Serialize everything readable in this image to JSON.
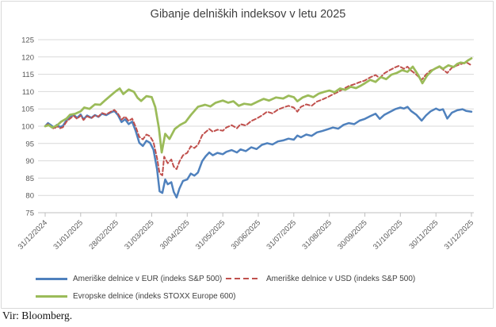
{
  "chart": {
    "title": "Gibanje delniških indeksov v letu 2025",
    "source_note": "Vir: Bloomberg."
  },
  "colors": {
    "us_eur_blue": "#4F81BD",
    "us_usd_red": "#C0504D",
    "europe_green": "#9BBB59",
    "gridline": "#d9d9d9",
    "axis_line": "#bfbfbf",
    "axis_text": "#595959"
  },
  "chart_data": {
    "type": "line",
    "title": "Gibanje delniških indeksov v letu 2025",
    "xlabel": "",
    "ylabel": "",
    "ylim": [
      75,
      125
    ],
    "y_ticks": [
      75,
      80,
      85,
      90,
      95,
      100,
      105,
      110,
      115,
      120,
      125
    ],
    "x_labels": [
      "31/12/2024",
      "31/01/2025",
      "28/02/2025",
      "31/03/2025",
      "30/04/2025",
      "31/05/2025",
      "30/06/2025",
      "31/07/2025",
      "31/08/2025",
      "30/09/2025",
      "31/10/2025",
      "30/11/2025",
      "31/12/2025"
    ],
    "x_unit": "months_from_2024-12-31",
    "grid": true,
    "legend_position": "bottom",
    "series": [
      {
        "id": "sp500-eur",
        "name": "Ameriške delnice v EUR (indeks S&P 500)",
        "color": "#4F81BD",
        "dash": null,
        "width": 2.5,
        "points": [
          [
            0,
            100
          ],
          [
            0.08,
            100.9
          ],
          [
            0.15,
            100.4
          ],
          [
            0.25,
            99.6
          ],
          [
            0.33,
            100.4
          ],
          [
            0.42,
            99.8
          ],
          [
            0.5,
            100.1
          ],
          [
            0.6,
            101.7
          ],
          [
            0.7,
            102.6
          ],
          [
            0.8,
            103.3
          ],
          [
            0.9,
            102.4
          ],
          [
            1.0,
            103.4
          ],
          [
            1.08,
            102.0
          ],
          [
            1.18,
            103.1
          ],
          [
            1.3,
            102.4
          ],
          [
            1.4,
            103.2
          ],
          [
            1.5,
            102.7
          ],
          [
            1.6,
            103.6
          ],
          [
            1.72,
            103.2
          ],
          [
            1.85,
            104.0
          ],
          [
            1.95,
            104.4
          ],
          [
            2.05,
            103.2
          ],
          [
            2.15,
            101.2
          ],
          [
            2.25,
            102.0
          ],
          [
            2.35,
            100.6
          ],
          [
            2.45,
            101.3
          ],
          [
            2.55,
            98.6
          ],
          [
            2.65,
            95.2
          ],
          [
            2.75,
            94.3
          ],
          [
            2.85,
            95.8
          ],
          [
            2.95,
            95.2
          ],
          [
            3.05,
            93.2
          ],
          [
            3.15,
            87.6
          ],
          [
            3.22,
            81.2
          ],
          [
            3.3,
            80.7
          ],
          [
            3.38,
            84.6
          ],
          [
            3.45,
            83.2
          ],
          [
            3.55,
            83.8
          ],
          [
            3.62,
            81.0
          ],
          [
            3.7,
            79.4
          ],
          [
            3.78,
            82.0
          ],
          [
            3.88,
            84.2
          ],
          [
            4.0,
            84.6
          ],
          [
            4.1,
            86.3
          ],
          [
            4.2,
            85.7
          ],
          [
            4.3,
            86.6
          ],
          [
            4.42,
            89.9
          ],
          [
            4.52,
            91.3
          ],
          [
            4.62,
            92.4
          ],
          [
            4.72,
            91.6
          ],
          [
            4.85,
            92.3
          ],
          [
            5.0,
            91.9
          ],
          [
            5.1,
            92.6
          ],
          [
            5.25,
            93.1
          ],
          [
            5.4,
            92.4
          ],
          [
            5.5,
            93.3
          ],
          [
            5.65,
            92.8
          ],
          [
            5.8,
            93.9
          ],
          [
            5.95,
            93.4
          ],
          [
            6.1,
            94.6
          ],
          [
            6.25,
            95.1
          ],
          [
            6.4,
            94.7
          ],
          [
            6.55,
            95.6
          ],
          [
            6.7,
            95.9
          ],
          [
            6.85,
            96.4
          ],
          [
            7.0,
            96.1
          ],
          [
            7.1,
            97.3
          ],
          [
            7.2,
            96.8
          ],
          [
            7.35,
            97.6
          ],
          [
            7.5,
            97.2
          ],
          [
            7.65,
            98.2
          ],
          [
            7.8,
            98.6
          ],
          [
            7.95,
            99.1
          ],
          [
            8.1,
            99.6
          ],
          [
            8.25,
            99.3
          ],
          [
            8.4,
            100.4
          ],
          [
            8.55,
            100.9
          ],
          [
            8.7,
            100.6
          ],
          [
            8.85,
            101.6
          ],
          [
            9.0,
            102.1
          ],
          [
            9.15,
            102.9
          ],
          [
            9.3,
            103.6
          ],
          [
            9.42,
            102.1
          ],
          [
            9.55,
            103.3
          ],
          [
            9.7,
            104.1
          ],
          [
            9.85,
            104.9
          ],
          [
            10.0,
            105.4
          ],
          [
            10.1,
            105.1
          ],
          [
            10.2,
            105.6
          ],
          [
            10.3,
            104.4
          ],
          [
            10.45,
            103.3
          ],
          [
            10.6,
            101.6
          ],
          [
            10.72,
            103.1
          ],
          [
            10.85,
            104.3
          ],
          [
            11.0,
            105.1
          ],
          [
            11.1,
            104.6
          ],
          [
            11.2,
            104.9
          ],
          [
            11.32,
            102.2
          ],
          [
            11.45,
            103.9
          ],
          [
            11.6,
            104.6
          ],
          [
            11.75,
            104.9
          ],
          [
            11.85,
            104.4
          ],
          [
            12.0,
            104.2
          ]
        ]
      },
      {
        "id": "sp500-usd",
        "name": "Ameriške delnice v USD (indeks S&P 500)",
        "color": "#C0504D",
        "dash": "5,3",
        "width": 2,
        "points": [
          [
            0,
            100
          ],
          [
            0.08,
            100.6
          ],
          [
            0.15,
            100.1
          ],
          [
            0.25,
            99.2
          ],
          [
            0.33,
            100.0
          ],
          [
            0.42,
            99.4
          ],
          [
            0.5,
            99.7
          ],
          [
            0.6,
            101.3
          ],
          [
            0.7,
            102.2
          ],
          [
            0.8,
            103.0
          ],
          [
            0.9,
            102.1
          ],
          [
            1.0,
            103.1
          ],
          [
            1.08,
            101.8
          ],
          [
            1.18,
            102.9
          ],
          [
            1.3,
            102.3
          ],
          [
            1.4,
            103.1
          ],
          [
            1.5,
            102.8
          ],
          [
            1.6,
            103.8
          ],
          [
            1.72,
            103.4
          ],
          [
            1.85,
            104.2
          ],
          [
            1.95,
            104.7
          ],
          [
            2.05,
            103.6
          ],
          [
            2.15,
            101.9
          ],
          [
            2.25,
            102.8
          ],
          [
            2.35,
            101.5
          ],
          [
            2.45,
            102.2
          ],
          [
            2.55,
            99.8
          ],
          [
            2.65,
            96.9
          ],
          [
            2.75,
            96.2
          ],
          [
            2.85,
            97.6
          ],
          [
            2.95,
            97.1
          ],
          [
            3.05,
            95.4
          ],
          [
            3.15,
            90.8
          ],
          [
            3.22,
            86.4
          ],
          [
            3.3,
            85.8
          ],
          [
            3.35,
            91.2
          ],
          [
            3.45,
            89.3
          ],
          [
            3.55,
            90.4
          ],
          [
            3.62,
            88.3
          ],
          [
            3.7,
            87.6
          ],
          [
            3.78,
            89.8
          ],
          [
            3.88,
            91.6
          ],
          [
            4.0,
            92.3
          ],
          [
            4.1,
            94.2
          ],
          [
            4.2,
            93.7
          ],
          [
            4.3,
            94.6
          ],
          [
            4.42,
            97.4
          ],
          [
            4.52,
            98.3
          ],
          [
            4.62,
            99.2
          ],
          [
            4.72,
            98.4
          ],
          [
            4.85,
            99.0
          ],
          [
            5.0,
            98.7
          ],
          [
            5.1,
            99.6
          ],
          [
            5.25,
            100.3
          ],
          [
            5.4,
            99.4
          ],
          [
            5.5,
            100.6
          ],
          [
            5.65,
            100.2
          ],
          [
            5.8,
            101.5
          ],
          [
            5.95,
            102.2
          ],
          [
            6.1,
            103.1
          ],
          [
            6.25,
            104.2
          ],
          [
            6.4,
            103.7
          ],
          [
            6.55,
            104.8
          ],
          [
            6.7,
            105.4
          ],
          [
            6.85,
            105.9
          ],
          [
            7.0,
            105.4
          ],
          [
            7.1,
            104.2
          ],
          [
            7.2,
            105.6
          ],
          [
            7.35,
            106.3
          ],
          [
            7.5,
            105.9
          ],
          [
            7.65,
            107.1
          ],
          [
            7.8,
            107.7
          ],
          [
            7.95,
            108.4
          ],
          [
            8.1,
            109.2
          ],
          [
            8.25,
            109.9
          ],
          [
            8.4,
            110.8
          ],
          [
            8.55,
            111.6
          ],
          [
            8.7,
            112.1
          ],
          [
            8.85,
            112.7
          ],
          [
            9.0,
            113.2
          ],
          [
            9.15,
            114.1
          ],
          [
            9.3,
            114.8
          ],
          [
            9.42,
            113.9
          ],
          [
            9.55,
            115.3
          ],
          [
            9.7,
            116.2
          ],
          [
            9.85,
            117.0
          ],
          [
            9.95,
            117.4
          ],
          [
            10.1,
            116.6
          ],
          [
            10.2,
            117.2
          ],
          [
            10.3,
            116.1
          ],
          [
            10.45,
            114.9
          ],
          [
            10.6,
            113.4
          ],
          [
            10.72,
            114.9
          ],
          [
            10.85,
            116.1
          ],
          [
            11.0,
            116.7
          ],
          [
            11.1,
            117.1
          ],
          [
            11.2,
            116.4
          ],
          [
            11.32,
            115.4
          ],
          [
            11.45,
            116.9
          ],
          [
            11.6,
            117.6
          ],
          [
            11.75,
            118.1
          ],
          [
            11.85,
            118.5
          ],
          [
            12.0,
            117.6
          ]
        ]
      },
      {
        "id": "stoxx600",
        "name": "Evropske delnice (indeks STOXX Europe 600)",
        "color": "#9BBB59",
        "dash": null,
        "width": 2.75,
        "points": [
          [
            0,
            100
          ],
          [
            0.1,
            100.3
          ],
          [
            0.2,
            99.6
          ],
          [
            0.33,
            100.2
          ],
          [
            0.45,
            101.3
          ],
          [
            0.6,
            102.2
          ],
          [
            0.7,
            103.3
          ],
          [
            0.85,
            103.6
          ],
          [
            1.0,
            104.3
          ],
          [
            1.1,
            105.4
          ],
          [
            1.25,
            105.0
          ],
          [
            1.4,
            106.3
          ],
          [
            1.55,
            106.2
          ],
          [
            1.7,
            107.6
          ],
          [
            1.85,
            108.9
          ],
          [
            2.0,
            110.2
          ],
          [
            2.1,
            110.9
          ],
          [
            2.2,
            109.3
          ],
          [
            2.35,
            110.6
          ],
          [
            2.5,
            109.9
          ],
          [
            2.6,
            108.2
          ],
          [
            2.7,
            107.3
          ],
          [
            2.85,
            108.7
          ],
          [
            3.0,
            108.4
          ],
          [
            3.1,
            105.5
          ],
          [
            3.2,
            99.5
          ],
          [
            3.28,
            92.4
          ],
          [
            3.38,
            97.8
          ],
          [
            3.5,
            96.3
          ],
          [
            3.65,
            99.2
          ],
          [
            3.8,
            100.4
          ],
          [
            3.95,
            101.2
          ],
          [
            4.1,
            103.2
          ],
          [
            4.3,
            105.6
          ],
          [
            4.5,
            106.2
          ],
          [
            4.65,
            105.7
          ],
          [
            4.8,
            106.8
          ],
          [
            5.0,
            107.4
          ],
          [
            5.15,
            106.8
          ],
          [
            5.3,
            107.2
          ],
          [
            5.45,
            105.9
          ],
          [
            5.6,
            106.5
          ],
          [
            5.8,
            106.2
          ],
          [
            6.0,
            107.2
          ],
          [
            6.15,
            107.9
          ],
          [
            6.3,
            107.4
          ],
          [
            6.5,
            108.3
          ],
          [
            6.7,
            108.0
          ],
          [
            6.85,
            108.8
          ],
          [
            7.0,
            108.4
          ],
          [
            7.1,
            107.2
          ],
          [
            7.25,
            108.3
          ],
          [
            7.4,
            108.9
          ],
          [
            7.55,
            108.4
          ],
          [
            7.7,
            109.4
          ],
          [
            7.85,
            109.9
          ],
          [
            8.0,
            110.3
          ],
          [
            8.15,
            109.8
          ],
          [
            8.3,
            110.9
          ],
          [
            8.45,
            110.5
          ],
          [
            8.6,
            111.4
          ],
          [
            8.75,
            111.0
          ],
          [
            8.9,
            111.8
          ],
          [
            9.0,
            112.4
          ],
          [
            9.15,
            113.4
          ],
          [
            9.3,
            112.8
          ],
          [
            9.45,
            114.2
          ],
          [
            9.6,
            113.6
          ],
          [
            9.75,
            114.9
          ],
          [
            9.9,
            115.4
          ],
          [
            10.05,
            116.2
          ],
          [
            10.2,
            115.7
          ],
          [
            10.35,
            117.2
          ],
          [
            10.5,
            114.8
          ],
          [
            10.62,
            112.4
          ],
          [
            10.75,
            114.6
          ],
          [
            10.9,
            116.2
          ],
          [
            11.0,
            116.8
          ],
          [
            11.1,
            117.3
          ],
          [
            11.2,
            116.6
          ],
          [
            11.35,
            117.6
          ],
          [
            11.5,
            117.1
          ],
          [
            11.6,
            118.0
          ],
          [
            11.7,
            118.4
          ],
          [
            11.8,
            118.2
          ],
          [
            11.9,
            119.0
          ],
          [
            12.0,
            119.6
          ]
        ]
      }
    ]
  }
}
